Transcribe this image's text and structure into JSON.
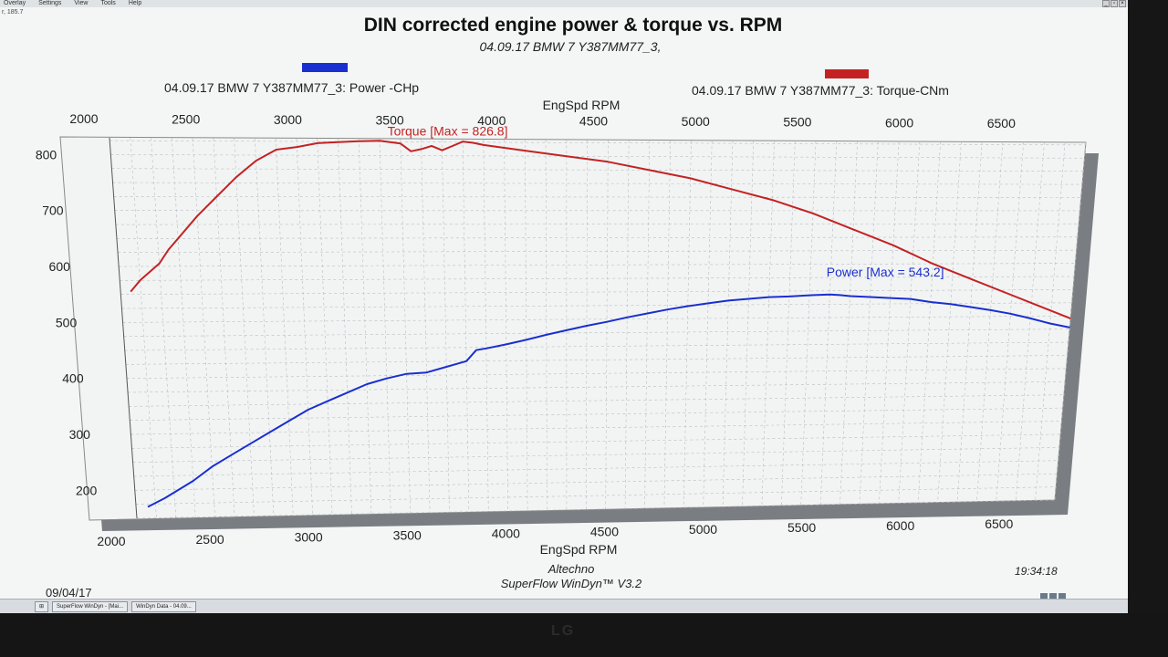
{
  "menu": {
    "items": [
      "Overlay",
      "Settings",
      "View",
      "Tools",
      "Help"
    ],
    "coord_readout": "r, 185.7"
  },
  "chart_data": {
    "type": "line",
    "title": "DIN corrected engine power & torque vs. RPM",
    "subtitle": "04.09.17 BMW 7 Y387MM77_3,",
    "xlabel": "EngSpd RPM",
    "xlabel_top": "EngSpd RPM",
    "xlim": [
      2000,
      6700
    ],
    "ylim": [
      150,
      830
    ],
    "x_ticks": [
      2000,
      2500,
      3000,
      3500,
      4000,
      4500,
      5000,
      5500,
      6000,
      6500
    ],
    "y_ticks": [
      200,
      300,
      400,
      500,
      600,
      700,
      800
    ],
    "grid": true,
    "legend_placement": "top",
    "series": [
      {
        "name": "04.09.17 BMW 7 Y387MM77_3: Power -CHp",
        "color": "#1a2fd0",
        "annotation": "Power  [Max = 543.2]",
        "x": [
          2060,
          2150,
          2200,
          2300,
          2400,
          2500,
          2600,
          2700,
          2800,
          2900,
          3000,
          3100,
          3200,
          3300,
          3400,
          3500,
          3600,
          3700,
          3750,
          3800,
          3900,
          4000,
          4100,
          4200,
          4300,
          4400,
          4500,
          4600,
          4700,
          4800,
          4900,
          5000,
          5100,
          5200,
          5300,
          5400,
          5500,
          5550,
          5600,
          5700,
          5800,
          5900,
          6000,
          6100,
          6200,
          6300,
          6400,
          6500,
          6600,
          6700
        ],
        "values": [
          170,
          185,
          195,
          215,
          240,
          260,
          280,
          300,
          320,
          340,
          355,
          370,
          385,
          395,
          403,
          405,
          415,
          425,
          445,
          448,
          455,
          463,
          472,
          480,
          488,
          495,
          503,
          510,
          517,
          523,
          528,
          533,
          536,
          539,
          540,
          542,
          543.2,
          542,
          540,
          538,
          536,
          534,
          528,
          524,
          518,
          512,
          505,
          496,
          486,
          478
        ]
      },
      {
        "name": "04.09.17 BMW 7 Y387MM77_3: Torque-CNm",
        "color": "#c42222",
        "annotation": "Torque  [Max = 826.8]",
        "x": [
          2050,
          2100,
          2200,
          2250,
          2300,
          2400,
          2500,
          2600,
          2700,
          2800,
          2900,
          3000,
          3100,
          3200,
          3300,
          3400,
          3450,
          3500,
          3550,
          3600,
          3650,
          3700,
          3750,
          3800,
          3900,
          4000,
          4200,
          4400,
          4600,
          4800,
          5000,
          5200,
          5400,
          5600,
          5800,
          6000,
          6200,
          6400,
          6500,
          6600,
          6700
        ],
        "values": [
          555,
          575,
          605,
          630,
          650,
          690,
          725,
          760,
          790,
          810,
          815,
          822,
          824,
          826,
          826.8,
          822,
          808,
          812,
          818,
          810,
          818,
          826,
          824,
          820,
          815,
          810,
          800,
          790,
          775,
          760,
          740,
          720,
          695,
          665,
          635,
          600,
          570,
          540,
          525,
          510,
          495
        ]
      }
    ],
    "footer_date": "09/04/17",
    "footer_time": "19:34:18",
    "footer_vendor": "Altechno",
    "footer_product": "SuperFlow WinDyn™ V3.2"
  },
  "taskbar": {
    "items": [
      "SuperFlow WinDyn - [Mai...",
      "WinDyn Data - 04.09..."
    ]
  }
}
